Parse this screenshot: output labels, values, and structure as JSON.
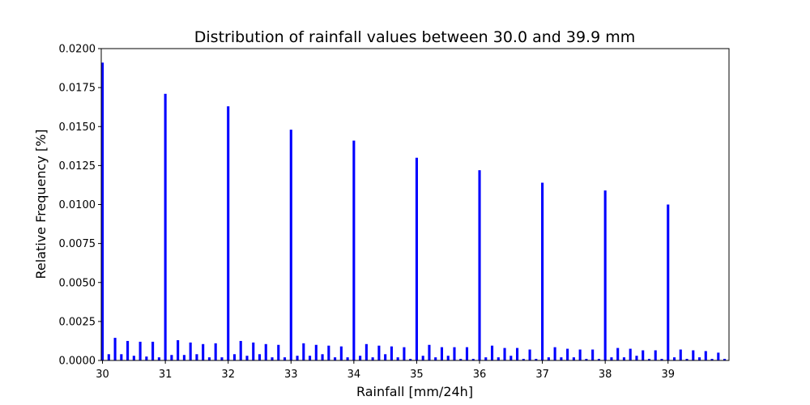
{
  "chart_data": {
    "type": "bar",
    "title": "Distribution of rainfall values between 30.0 and 39.9 mm",
    "xlabel": "Rainfall [mm/24h]",
    "ylabel": "Relative Frequency [%]",
    "xlim": [
      29.98,
      39.97
    ],
    "ylim": [
      0.0,
      0.02
    ],
    "xticks": [
      30,
      31,
      32,
      33,
      34,
      35,
      36,
      37,
      38,
      39
    ],
    "xtick_labels": [
      "30",
      "31",
      "32",
      "33",
      "34",
      "35",
      "36",
      "37",
      "38",
      "39"
    ],
    "yticks": [
      0.0,
      0.0025,
      0.005,
      0.0075,
      0.01,
      0.0125,
      0.015,
      0.0175,
      0.02
    ],
    "ytick_labels": [
      "0.0000",
      "0.0025",
      "0.0050",
      "0.0075",
      "0.0100",
      "0.0125",
      "0.0150",
      "0.0175",
      "0.0200"
    ],
    "grid": false,
    "bar_width": 0.04,
    "color": "#0000ff",
    "x": [
      30.0,
      30.1,
      30.2,
      30.3,
      30.4,
      30.5,
      30.6,
      30.7,
      30.8,
      30.9,
      31.0,
      31.1,
      31.2,
      31.3,
      31.4,
      31.5,
      31.6,
      31.7,
      31.8,
      31.9,
      32.0,
      32.1,
      32.2,
      32.3,
      32.4,
      32.5,
      32.6,
      32.7,
      32.8,
      32.9,
      33.0,
      33.1,
      33.2,
      33.3,
      33.4,
      33.5,
      33.6,
      33.7,
      33.8,
      33.9,
      34.0,
      34.1,
      34.2,
      34.3,
      34.4,
      34.5,
      34.6,
      34.7,
      34.8,
      34.9,
      35.0,
      35.1,
      35.2,
      35.3,
      35.4,
      35.5,
      35.6,
      35.7,
      35.8,
      35.9,
      36.0,
      36.1,
      36.2,
      36.3,
      36.4,
      36.5,
      36.6,
      36.7,
      36.8,
      36.9,
      37.0,
      37.1,
      37.2,
      37.3,
      37.4,
      37.5,
      37.6,
      37.7,
      37.8,
      37.9,
      38.0,
      38.1,
      38.2,
      38.3,
      38.4,
      38.5,
      38.6,
      38.7,
      38.8,
      38.9,
      39.0,
      39.1,
      39.2,
      39.3,
      39.4,
      39.5,
      39.6,
      39.7,
      39.8,
      39.9
    ],
    "values": [
      0.0191,
      0.0004,
      0.00145,
      0.0004,
      0.00125,
      0.0003,
      0.0012,
      0.00025,
      0.0012,
      0.0002,
      0.0171,
      0.00035,
      0.0013,
      0.00035,
      0.00115,
      0.0004,
      0.00105,
      0.0002,
      0.0011,
      0.0002,
      0.0163,
      0.0004,
      0.00125,
      0.0003,
      0.00115,
      0.0004,
      0.00105,
      0.0002,
      0.001,
      0.0002,
      0.0148,
      0.0003,
      0.0011,
      0.0003,
      0.001,
      0.0004,
      0.00095,
      0.0002,
      0.0009,
      0.0002,
      0.0141,
      0.0003,
      0.00105,
      0.0002,
      0.00095,
      0.0004,
      0.0009,
      0.0002,
      0.00085,
      0.0001,
      0.013,
      0.0003,
      0.001,
      0.0002,
      0.00085,
      0.0003,
      0.00085,
      0.0001,
      0.00085,
      0.0001,
      0.0122,
      0.0002,
      0.00095,
      0.0002,
      0.0008,
      0.0003,
      0.0008,
      0.0001,
      0.0007,
      0.0001,
      0.0114,
      0.0002,
      0.00085,
      0.0002,
      0.00075,
      0.0002,
      0.0007,
      0.0001,
      0.0007,
      0.0001,
      0.0109,
      0.0002,
      0.0008,
      0.0002,
      0.00075,
      0.0003,
      0.00065,
      0.0001,
      0.00065,
      0.0001,
      0.01,
      0.0002,
      0.0007,
      0.0001,
      0.00065,
      0.0002,
      0.0006,
      0.0001,
      0.0005,
      0.0001
    ]
  }
}
